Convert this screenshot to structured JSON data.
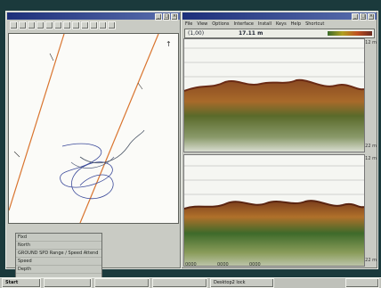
{
  "left_window": {
    "title": ""
  },
  "right_window": {
    "title": "",
    "menu": [
      "File",
      "View",
      "Options",
      "Interface",
      "Install",
      "Keys",
      "Help",
      "Shortcut"
    ],
    "readout_left": "(1,00)",
    "readout_center": "17.11 m",
    "top_max_depth": "12 m",
    "top_bottom_depth": "22 m",
    "bottom_max_depth": "12 m",
    "bottom_bottom_depth": "22 m",
    "status": [
      "0000",
      "0000",
      "0000"
    ]
  },
  "info_panel": {
    "rows": [
      {
        "label": "Fixd",
        "value": ""
      },
      {
        "label": "North",
        "value": ""
      },
      {
        "label": "GROUND SPD Range / Speed Attend",
        "value": ""
      },
      {
        "label": "Speed",
        "value": ""
      },
      {
        "label": "Depth",
        "value": ""
      }
    ]
  },
  "taskbar": {
    "items": [
      "Start",
      "",
      "",
      "",
      "Desktop2 lock"
    ],
    "clock": ""
  },
  "colors": {
    "desktop": "#1b3a3c",
    "track_line": "#d9742e",
    "boat_track": "#3b4a9a",
    "seabed": "#8a5a2a"
  }
}
